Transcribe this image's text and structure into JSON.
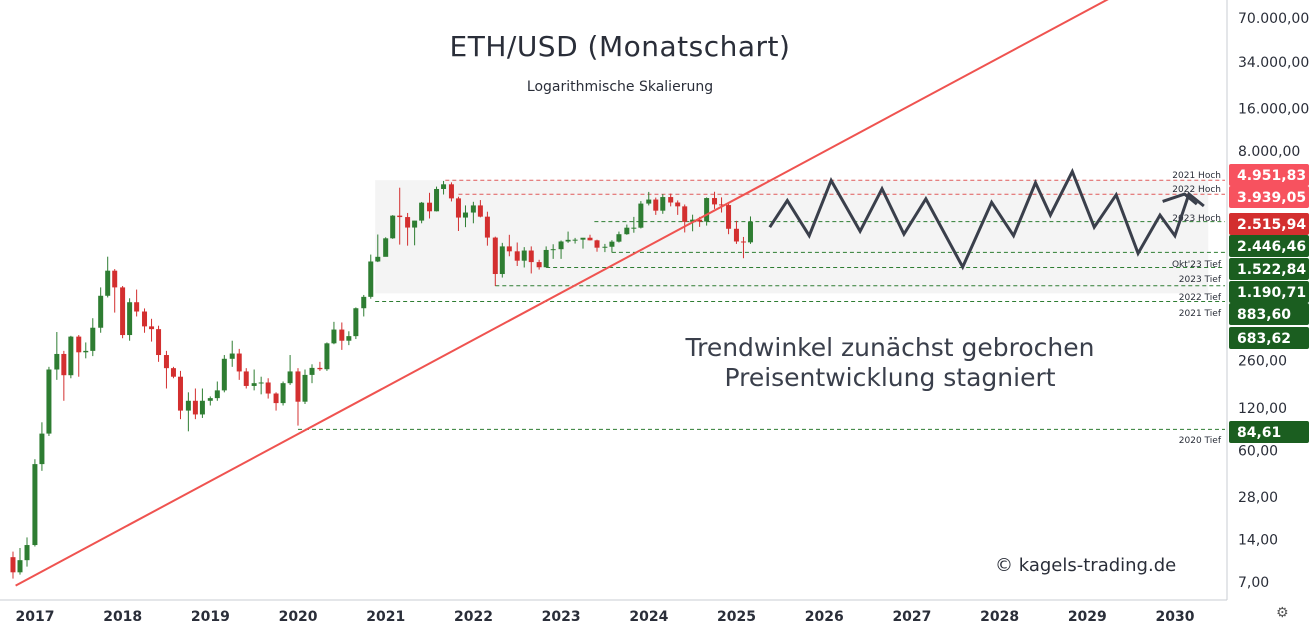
{
  "chart_data": {
    "type": "candlestick",
    "title": "ETH/USD (Monatschart)",
    "subtitle": "Logarithmische Skalierung",
    "scale": "log",
    "x_range": [
      2016.75,
      2030.5
    ],
    "y_range": [
      5.5,
      110000
    ],
    "y_ticks": [
      {
        "value": 7,
        "label": "7,00"
      },
      {
        "value": 14,
        "label": "14,00"
      },
      {
        "value": 28,
        "label": "28,00"
      },
      {
        "value": 60,
        "label": "60,00"
      },
      {
        "value": 120,
        "label": "120,00"
      },
      {
        "value": 260,
        "label": "260,00"
      },
      {
        "value": 8000,
        "label": "8.000,00"
      },
      {
        "value": 16000,
        "label": "16.000,00"
      },
      {
        "value": 34000,
        "label": "34.000,00"
      },
      {
        "value": 70000,
        "label": "70.000,00"
      }
    ],
    "x_ticks": [
      {
        "value": 2017,
        "label": "2017"
      },
      {
        "value": 2018,
        "label": "2018"
      },
      {
        "value": 2019,
        "label": "2019"
      },
      {
        "value": 2020,
        "label": "2020"
      },
      {
        "value": 2021,
        "label": "2021"
      },
      {
        "value": 2022,
        "label": "2022"
      },
      {
        "value": 2023,
        "label": "2023"
      },
      {
        "value": 2024,
        "label": "2024"
      },
      {
        "value": 2025,
        "label": "2025"
      },
      {
        "value": 2026,
        "label": "2026"
      },
      {
        "value": 2027,
        "label": "2027"
      },
      {
        "value": 2028,
        "label": "2028"
      },
      {
        "value": 2029,
        "label": "2029"
      },
      {
        "value": 2030,
        "label": "2030"
      }
    ],
    "levels": [
      {
        "label": "2021 Hoch",
        "value": 4951.83,
        "price_label": "4.951,83",
        "color": "#f7525f",
        "line": "#e05a5a"
      },
      {
        "label": "2022 Hoch",
        "value": 3939.05,
        "price_label": "3.939,05",
        "color": "#f7525f",
        "line": "#e05a5a"
      },
      {
        "label": "2023 Hoch",
        "value": 2515.94,
        "price_label": "2.515,94",
        "color": "#d32f2f",
        "line": "#2e7d32"
      },
      {
        "label": "",
        "value": 2446.46,
        "price_label": "2.446,46",
        "color": "#1b5e20",
        "line": ""
      },
      {
        "label": "Okt'23 Tief",
        "value": 1522.84,
        "price_label": "1.522,84",
        "color": "#1b5e20",
        "line": "#2e7d32"
      },
      {
        "label": "2023 Tief",
        "value": 1190.71,
        "price_label": "1.190,71",
        "color": "#1b5e20",
        "line": "#2e7d32"
      },
      {
        "label": "2022 Tief",
        "value": 883.6,
        "price_label": "883,60",
        "color": "#1b5e20",
        "line": "#2e7d32"
      },
      {
        "label": "2021 Tief",
        "value": 683.62,
        "price_label": "683,62",
        "color": "#1b5e20",
        "line": "#2e7d32"
      },
      {
        "label": "2020 Tief",
        "value": 84.61,
        "price_label": "84,61",
        "color": "#1b5e20",
        "line": "#2e7d32"
      }
    ],
    "candles": [
      [
        2016.92,
        10.5,
        11.5,
        7.4,
        8.2
      ],
      [
        2017.0,
        8.2,
        12.2,
        7.9,
        10.0
      ],
      [
        2017.08,
        10.0,
        14.5,
        9.0,
        12.8
      ],
      [
        2017.17,
        12.8,
        52,
        12.5,
        48
      ],
      [
        2017.25,
        48,
        95,
        43,
        79
      ],
      [
        2017.33,
        79,
        235,
        76,
        225
      ],
      [
        2017.42,
        225,
        415,
        190,
        290
      ],
      [
        2017.5,
        290,
        305,
        135,
        205
      ],
      [
        2017.58,
        205,
        390,
        195,
        385
      ],
      [
        2017.67,
        385,
        395,
        200,
        298
      ],
      [
        2017.75,
        298,
        350,
        270,
        305
      ],
      [
        2017.83,
        305,
        520,
        280,
        445
      ],
      [
        2017.92,
        445,
        860,
        410,
        750
      ],
      [
        2018.0,
        750,
        1420,
        730,
        1130
      ],
      [
        2018.08,
        1130,
        1160,
        570,
        860
      ],
      [
        2018.17,
        860,
        880,
        375,
        395
      ],
      [
        2018.25,
        395,
        720,
        360,
        675
      ],
      [
        2018.33,
        675,
        830,
        535,
        580
      ],
      [
        2018.42,
        580,
        610,
        410,
        455
      ],
      [
        2018.5,
        455,
        515,
        355,
        435
      ],
      [
        2018.58,
        435,
        460,
        255,
        285
      ],
      [
        2018.67,
        285,
        305,
        165,
        230
      ],
      [
        2018.75,
        230,
        235,
        195,
        200
      ],
      [
        2018.83,
        200,
        220,
        100,
        115
      ],
      [
        2018.92,
        115,
        155,
        82,
        135
      ],
      [
        2019.0,
        135,
        165,
        100,
        108
      ],
      [
        2019.08,
        108,
        165,
        102,
        135
      ],
      [
        2019.17,
        135,
        145,
        125,
        141
      ],
      [
        2019.25,
        141,
        185,
        135,
        160
      ],
      [
        2019.33,
        160,
        285,
        155,
        268
      ],
      [
        2019.42,
        268,
        360,
        235,
        292
      ],
      [
        2019.5,
        292,
        315,
        190,
        218
      ],
      [
        2019.58,
        218,
        230,
        165,
        172
      ],
      [
        2019.67,
        172,
        225,
        160,
        180
      ],
      [
        2019.75,
        180,
        200,
        150,
        182
      ],
      [
        2019.83,
        182,
        195,
        140,
        152
      ],
      [
        2019.92,
        152,
        155,
        115,
        130
      ],
      [
        2020.0,
        130,
        185,
        125,
        180
      ],
      [
        2020.08,
        180,
        285,
        175,
        218
      ],
      [
        2020.17,
        218,
        230,
        90,
        133
      ],
      [
        2020.25,
        133,
        225,
        128,
        206
      ],
      [
        2020.33,
        206,
        245,
        180,
        231
      ],
      [
        2020.42,
        231,
        255,
        220,
        226
      ],
      [
        2020.5,
        226,
        350,
        220,
        345
      ],
      [
        2020.58,
        345,
        490,
        340,
        432
      ],
      [
        2020.67,
        432,
        485,
        310,
        360
      ],
      [
        2020.75,
        360,
        420,
        335,
        388
      ],
      [
        2020.83,
        388,
        620,
        370,
        612
      ],
      [
        2020.92,
        612,
        760,
        535,
        737
      ],
      [
        2021.0,
        737,
        1470,
        715,
        1313
      ],
      [
        2021.08,
        1313,
        2040,
        1300,
        1417
      ],
      [
        2021.17,
        1417,
        1950,
        1450,
        1917
      ],
      [
        2021.25,
        1917,
        2800,
        1900,
        2776
      ],
      [
        2021.33,
        2776,
        4380,
        1730,
        2712
      ],
      [
        2021.42,
        2712,
        2900,
        1700,
        2285
      ],
      [
        2021.5,
        2285,
        2550,
        1710,
        2560
      ],
      [
        2021.58,
        2560,
        3470,
        2450,
        3430
      ],
      [
        2021.67,
        3430,
        4030,
        2650,
        2980
      ],
      [
        2021.75,
        2980,
        4460,
        2970,
        4290
      ],
      [
        2021.83,
        4290,
        4891,
        3920,
        4630
      ],
      [
        2021.92,
        4630,
        4780,
        3500,
        3680
      ],
      [
        2022.0,
        3680,
        3780,
        2160,
        2690
      ],
      [
        2022.08,
        2690,
        3280,
        2300,
        2920
      ],
      [
        2022.17,
        2920,
        3480,
        2450,
        3280
      ],
      [
        2022.25,
        3280,
        3580,
        2700,
        2730
      ],
      [
        2022.33,
        2730,
        2960,
        1700,
        1940
      ],
      [
        2022.42,
        1940,
        1970,
        880,
        1070
      ],
      [
        2022.5,
        1070,
        1780,
        1010,
        1680
      ],
      [
        2022.58,
        1680,
        2030,
        1430,
        1550
      ],
      [
        2022.67,
        1550,
        1790,
        1220,
        1330
      ],
      [
        2022.75,
        1330,
        1660,
        1190,
        1570
      ],
      [
        2022.83,
        1570,
        1680,
        1080,
        1300
      ],
      [
        2022.92,
        1300,
        1350,
        1150,
        1195
      ],
      [
        2023.0,
        1195,
        1680,
        1190,
        1585
      ],
      [
        2023.08,
        1585,
        1740,
        1370,
        1605
      ],
      [
        2023.17,
        1605,
        1850,
        1370,
        1820
      ],
      [
        2023.25,
        1820,
        2140,
        1780,
        1870
      ],
      [
        2023.33,
        1870,
        1930,
        1760,
        1875
      ],
      [
        2023.42,
        1875,
        1930,
        1620,
        1935
      ],
      [
        2023.5,
        1935,
        2030,
        1850,
        1855
      ],
      [
        2023.58,
        1855,
        1875,
        1540,
        1645
      ],
      [
        2023.67,
        1645,
        1750,
        1530,
        1670
      ],
      [
        2023.75,
        1670,
        1860,
        1520,
        1815
      ],
      [
        2023.83,
        1815,
        2140,
        1790,
        2050
      ],
      [
        2023.92,
        2050,
        2400,
        2030,
        2280
      ],
      [
        2024.0,
        2280,
        2720,
        2100,
        2280
      ],
      [
        2024.08,
        2280,
        3520,
        2250,
        3380
      ],
      [
        2024.17,
        3380,
        4090,
        3280,
        3610
      ],
      [
        2024.25,
        3610,
        3730,
        2810,
        3010
      ],
      [
        2024.33,
        3010,
        3950,
        2860,
        3760
      ],
      [
        2024.42,
        3760,
        3980,
        3230,
        3440
      ],
      [
        2024.5,
        3440,
        3560,
        2810,
        3230
      ],
      [
        2024.58,
        3230,
        3330,
        2110,
        2510
      ],
      [
        2024.67,
        2510,
        2820,
        2150,
        2600
      ],
      [
        2024.75,
        2600,
        2720,
        2310,
        2520
      ],
      [
        2024.83,
        2520,
        3740,
        2360,
        3700
      ],
      [
        2024.92,
        3700,
        4100,
        3100,
        3335
      ],
      [
        2025.0,
        3335,
        3740,
        2920,
        3300
      ],
      [
        2025.08,
        3300,
        3420,
        2050,
        2240
      ],
      [
        2025.17,
        2240,
        2550,
        1750,
        1820
      ],
      [
        2025.25,
        1820,
        1960,
        1385,
        1795
      ],
      [
        2025.33,
        1795,
        2740,
        1750,
        2510
      ]
    ],
    "forecast": [
      [
        2025.55,
        2300
      ],
      [
        2025.75,
        3550
      ],
      [
        2026.0,
        2000
      ],
      [
        2026.25,
        4930
      ],
      [
        2026.58,
        2150
      ],
      [
        2026.83,
        4300
      ],
      [
        2027.08,
        2050
      ],
      [
        2027.33,
        3650
      ],
      [
        2027.75,
        1200
      ],
      [
        2028.08,
        3450
      ],
      [
        2028.33,
        2000
      ],
      [
        2028.58,
        4750
      ],
      [
        2028.75,
        2800
      ],
      [
        2029.0,
        5700
      ],
      [
        2029.25,
        2300
      ],
      [
        2029.5,
        3900
      ],
      [
        2029.75,
        1500
      ],
      [
        2030.0,
        2800
      ],
      [
        2030.17,
        2000
      ],
      [
        2030.33,
        3950
      ],
      [
        2030.5,
        3250
      ]
    ],
    "forecast_arrow": [
      [
        2030.03,
        3500
      ],
      [
        2030.28,
        3950
      ],
      [
        2030.42,
        3350
      ]
    ],
    "trendline": [
      [
        2016.95,
        6.6
      ],
      [
        2030.0,
        150000
      ]
    ],
    "range_box": {
      "x0": 2021.05,
      "x1": 2030.55,
      "y0": 780,
      "y1": 4951.83
    },
    "colors": {
      "up": "#2e7d32",
      "down": "#d32f2f",
      "trend": "#ef5350",
      "forecast": "#3a3f4b",
      "box": "#ececec"
    }
  },
  "annotation": {
    "line1": "Trendwinkel zunächst gebrochen",
    "line2": "Preisentwicklung stagniert"
  },
  "copyright": "© kagels-trading.de",
  "settings_icon": "gear-icon"
}
